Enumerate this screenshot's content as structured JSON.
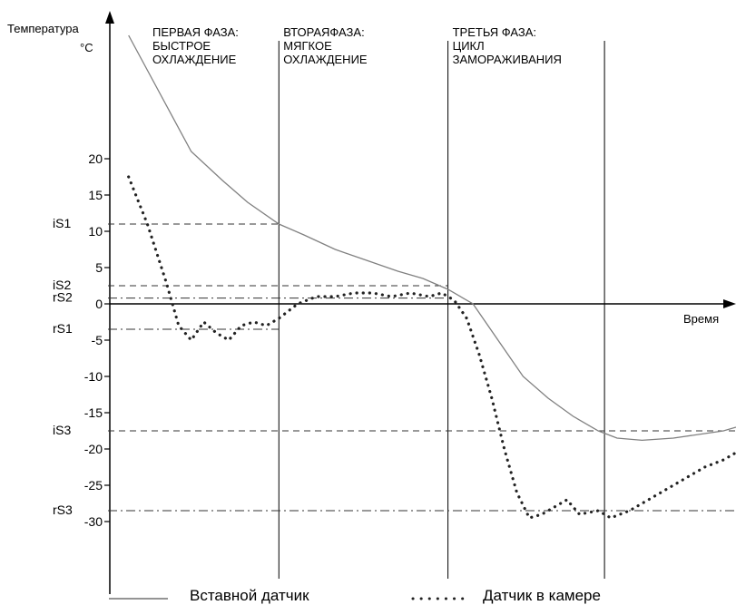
{
  "chart_data": {
    "type": "line",
    "ylabel": "Температура",
    "yunit": "°C",
    "xlabel": "Время",
    "ylim": [
      -40,
      30
    ],
    "yticks": [
      20,
      15,
      10,
      5,
      0,
      -5,
      -10,
      -15,
      -20,
      -25,
      -30
    ],
    "phases": [
      {
        "lines": [
          "ПЕРВАЯ ФАЗА:",
          "БЫСТРОЕ",
          "ОХЛАЖДЕНИЕ"
        ]
      },
      {
        "lines": [
          "ВТОРАЯФАЗА:",
          "МЯГКОЕ",
          "ОХЛАЖДЕНИЕ"
        ]
      },
      {
        "lines": [
          "ТРЕТЬЯ ФАЗА:",
          "ЦИКЛ",
          "ЗАМОРАЖИВАНИЯ"
        ]
      }
    ],
    "phase_boundaries": [
      27,
      54,
      79
    ],
    "thresholds": [
      {
        "label": "iS1",
        "value": 11,
        "style": "dashed",
        "x_end": 27
      },
      {
        "label": "iS2",
        "value": 2.5,
        "style": "dashed",
        "x_end": 54
      },
      {
        "label": "rS2",
        "value": 0.8,
        "style": "dashdot",
        "x_end": 54
      },
      {
        "label": "rS1",
        "value": -3.5,
        "style": "dashdot",
        "x_end": 27
      },
      {
        "label": "iS3",
        "value": -17.5,
        "style": "dashed",
        "x_end": 100
      },
      {
        "label": "rS3",
        "value": -28.5,
        "style": "dashdot",
        "x_end": 100
      }
    ],
    "series": [
      {
        "name": "Вставной датчик",
        "style": "solid",
        "color": "#808080",
        "x": [
          3,
          8,
          13,
          18,
          22,
          27,
          31,
          36,
          41,
          46,
          50,
          54,
          58,
          62,
          66,
          70,
          74,
          78,
          81,
          85,
          90,
          94,
          98,
          100
        ],
        "y": [
          37,
          29,
          21,
          17,
          14,
          11,
          9.5,
          7.5,
          6,
          4.5,
          3.5,
          2,
          0,
          -5,
          -10,
          -13,
          -15.5,
          -17.5,
          -18.5,
          -18.8,
          -18.5,
          -18,
          -17.5,
          -17
        ]
      },
      {
        "name": "Датчик в камере",
        "style": "dotted",
        "color": "#222222",
        "x": [
          3,
          6,
          9,
          11,
          13,
          15,
          17,
          19,
          21,
          23,
          25,
          27,
          30,
          33,
          36,
          39,
          42,
          45,
          48,
          51,
          53,
          55,
          57,
          59,
          61,
          63,
          65,
          67,
          69,
          71,
          73,
          75,
          78,
          80,
          83,
          86,
          89,
          92,
          95,
          98,
          100
        ],
        "y": [
          17.5,
          11,
          3,
          -3,
          -5,
          -2.5,
          -4,
          -5,
          -3,
          -2.5,
          -3,
          -2,
          0,
          1,
          1,
          1.5,
          1.5,
          1,
          1.5,
          1,
          1.5,
          0.5,
          -2,
          -7,
          -13,
          -20,
          -26,
          -29.5,
          -29,
          -28,
          -27,
          -29,
          -28.5,
          -29.5,
          -28.5,
          -27,
          -25.5,
          -24,
          -22.5,
          -21.5,
          -20.5
        ]
      }
    ]
  }
}
